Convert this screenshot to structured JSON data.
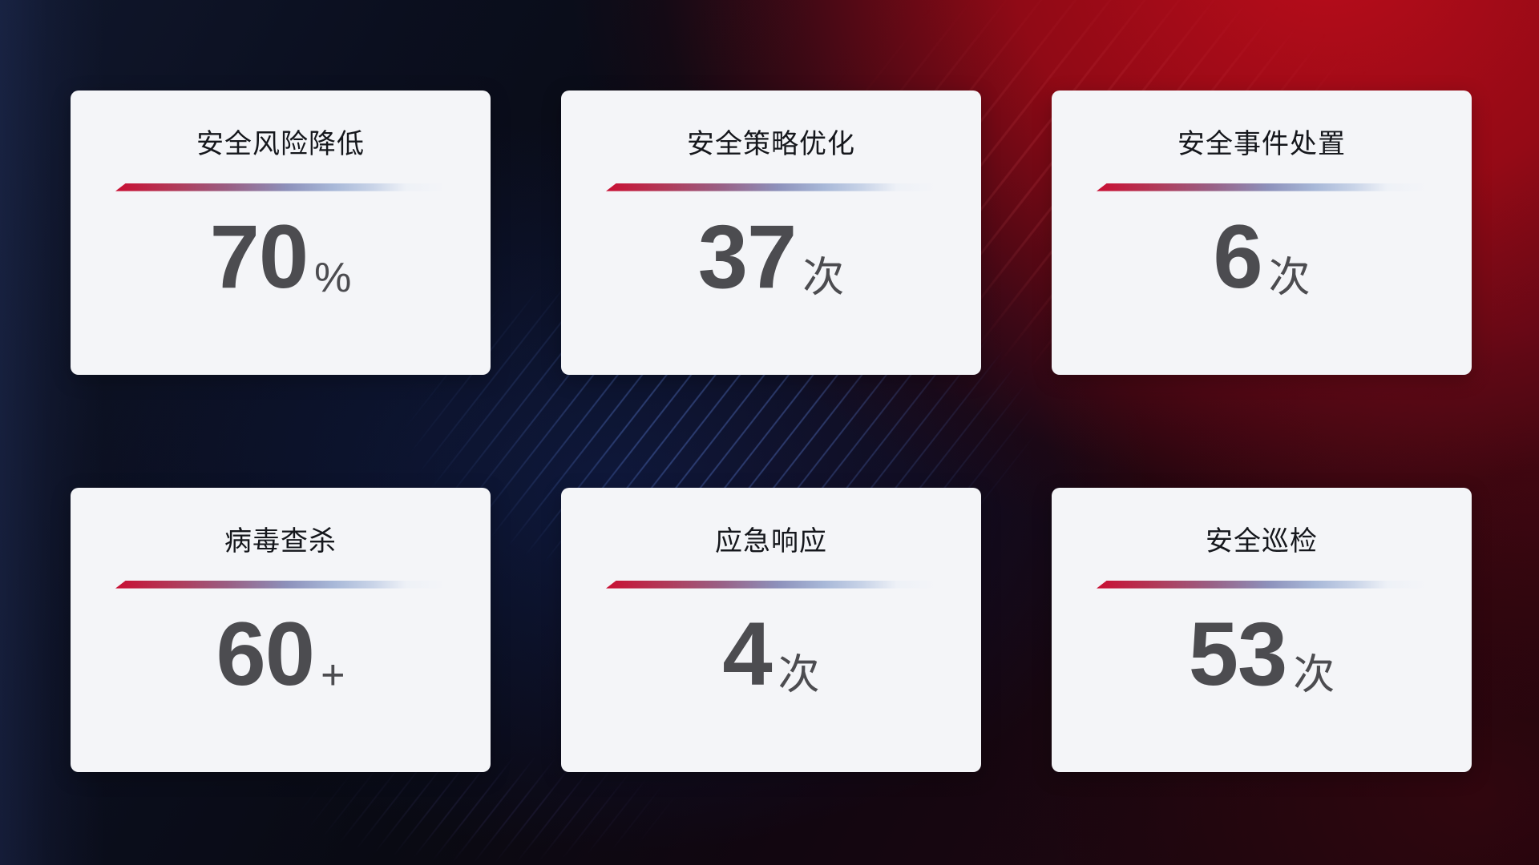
{
  "cards": [
    {
      "title": "安全风险降低",
      "value": "70",
      "unit": "%"
    },
    {
      "title": "安全策略优化",
      "value": "37",
      "unit": "次"
    },
    {
      "title": "安全事件处置",
      "value": "6",
      "unit": "次"
    },
    {
      "title": "病毒查杀",
      "value": "60",
      "unit": "+"
    },
    {
      "title": "应急响应",
      "value": "4",
      "unit": "次"
    },
    {
      "title": "安全巡检",
      "value": "53",
      "unit": "次"
    }
  ],
  "colors": {
    "card_background": "#f4f5f8",
    "title_text": "#15171c",
    "value_text": "#4c4c50",
    "divider_gradient_start": "#c90f33",
    "divider_gradient_mid": "#8d91bb",
    "divider_gradient_end": "#c9d4e8",
    "background_navy": "#0b0f1f",
    "background_red": "#9e0a16",
    "background_blue_streaks": "#7098ff"
  }
}
